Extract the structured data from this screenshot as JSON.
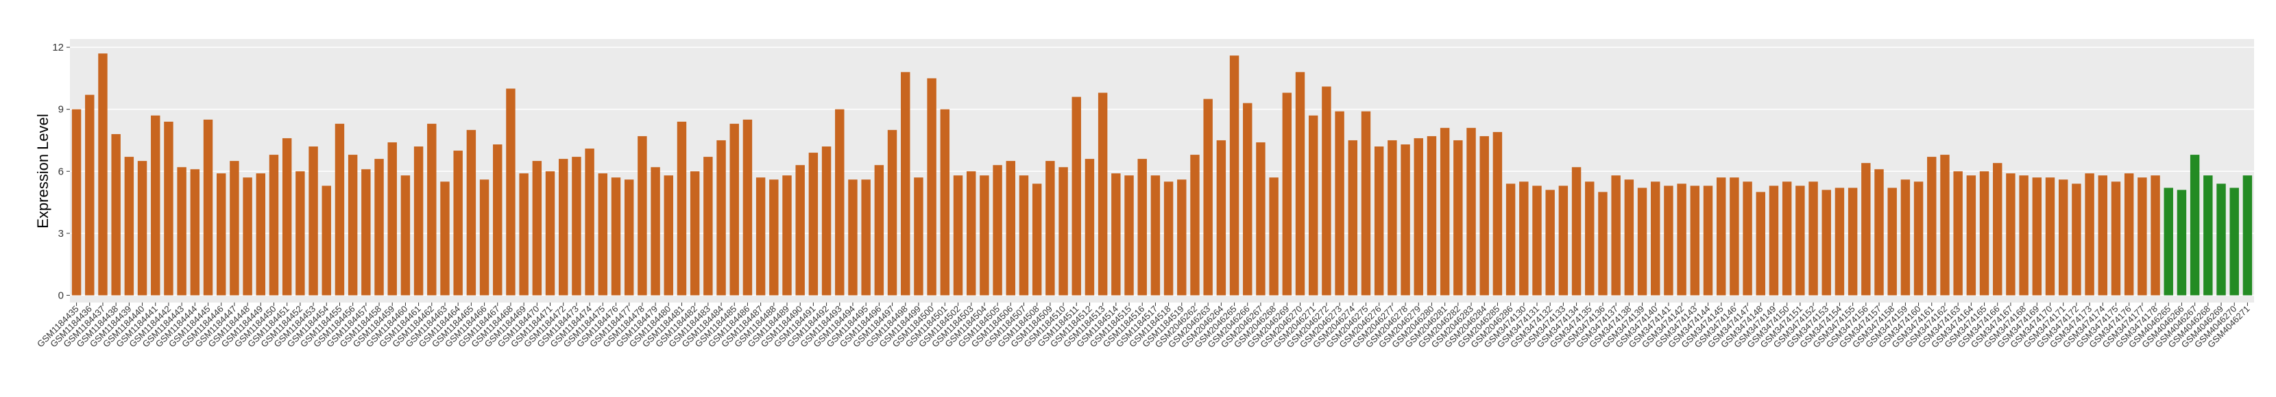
{
  "chart_data": {
    "type": "bar",
    "y_label": "Expression Level",
    "ylim": [
      -0.35,
      12.4
    ],
    "yticks": [
      0,
      3,
      6,
      9,
      12
    ],
    "grid": true,
    "series": [
      {
        "color": "#c8651f",
        "categories": [
          "GSM1184435",
          "GSM1184436",
          "GSM1184437",
          "GSM1184438",
          "GSM1184439",
          "GSM1184440",
          "GSM1184441",
          "GSM1184442",
          "GSM1184443",
          "GSM1184444",
          "GSM1184445",
          "GSM1184446",
          "GSM1184447",
          "GSM1184448",
          "GSM1184449",
          "GSM1184450",
          "GSM1184451",
          "GSM1184452",
          "GSM1184453",
          "GSM1184454",
          "GSM1184455",
          "GSM1184456",
          "GSM1184457",
          "GSM1184458",
          "GSM1184459",
          "GSM1184460",
          "GSM1184461",
          "GSM1184462",
          "GSM1184463",
          "GSM1184464",
          "GSM1184465",
          "GSM1184466",
          "GSM1184467",
          "GSM1184468",
          "GSM1184469",
          "GSM1184470",
          "GSM1184471",
          "GSM1184472",
          "GSM1184473",
          "GSM1184474",
          "GSM1184475",
          "GSM1184476",
          "GSM1184477",
          "GSM1184478",
          "GSM1184479",
          "GSM1184480",
          "GSM1184481",
          "GSM1184482",
          "GSM1184483",
          "GSM1184484",
          "GSM1184485",
          "GSM1184486",
          "GSM1184487",
          "GSM1184488",
          "GSM1184489",
          "GSM1184490",
          "GSM1184491",
          "GSM1184492",
          "GSM1184493",
          "GSM1184494",
          "GSM1184495",
          "GSM1184496",
          "GSM1184497",
          "GSM1184498",
          "GSM1184499",
          "GSM1184500",
          "GSM1184501",
          "GSM1184502",
          "GSM1184503",
          "GSM1184504",
          "GSM1184505",
          "GSM1184506",
          "GSM1184507",
          "GSM1184508",
          "GSM1184509",
          "GSM1184510",
          "GSM1184511",
          "GSM1184512",
          "GSM1184513",
          "GSM1184514",
          "GSM1184515",
          "GSM1184516",
          "GSM1184517",
          "GSM1184518",
          "GSM1184519",
          "GSM2046262",
          "GSM2046263",
          "GSM2046264",
          "GSM2046265",
          "GSM2046266",
          "GSM2046267",
          "GSM2046268",
          "GSM2046269",
          "GSM2046270",
          "GSM2046271",
          "GSM2046272",
          "GSM2046273",
          "GSM2046274",
          "GSM2046275",
          "GSM2046276",
          "GSM2046277",
          "GSM2046278",
          "GSM2046279",
          "GSM2046280",
          "GSM2046281",
          "GSM2046282",
          "GSM2046283",
          "GSM2046284",
          "GSM2046285",
          "GSM2046286",
          "GSM3474130",
          "GSM3474131",
          "GSM3474132",
          "GSM3474133",
          "GSM3474134",
          "GSM3474135",
          "GSM3474136",
          "GSM3474137",
          "GSM3474138",
          "GSM3474139",
          "GSM3474140",
          "GSM3474141",
          "GSM3474142",
          "GSM3474143",
          "GSM3474144",
          "GSM3474145",
          "GSM3474146",
          "GSM3474147",
          "GSM3474148",
          "GSM3474149",
          "GSM3474150",
          "GSM3474151",
          "GSM3474152",
          "GSM3474153",
          "GSM3474154",
          "GSM3474155",
          "GSM3474156",
          "GSM3474157",
          "GSM3474158",
          "GSM3474159",
          "GSM3474160",
          "GSM3474161",
          "GSM3474162",
          "GSM3474163",
          "GSM3474164",
          "GSM3474165",
          "GSM3474166",
          "GSM3474167",
          "GSM3474168",
          "GSM3474169",
          "GSM3474170",
          "GSM3474171",
          "GSM3474172",
          "GSM3474173",
          "GSM3474174",
          "GSM3474175",
          "GSM3474176",
          "GSM3474177",
          "GSM3474178"
        ],
        "values": [
          9.0,
          9.7,
          11.7,
          7.8,
          6.7,
          6.5,
          8.7,
          8.4,
          6.2,
          6.1,
          8.5,
          5.9,
          6.5,
          5.7,
          5.9,
          6.8,
          7.6,
          6.0,
          7.2,
          5.3,
          8.3,
          6.8,
          6.1,
          6.6,
          7.4,
          5.8,
          7.2,
          8.3,
          5.5,
          7.0,
          8.0,
          5.6,
          7.3,
          10.0,
          5.9,
          6.5,
          6.0,
          6.6,
          6.7,
          7.1,
          5.9,
          5.7,
          5.6,
          7.7,
          6.2,
          5.8,
          8.4,
          6.0,
          6.7,
          7.5,
          8.3,
          8.5,
          5.7,
          5.6,
          5.8,
          6.3,
          6.9,
          7.2,
          9.0,
          5.6,
          5.6,
          6.3,
          8.0,
          10.8,
          5.7,
          10.5,
          9.0,
          5.8,
          6.0,
          5.8,
          6.3,
          6.5,
          5.8,
          5.4,
          6.5,
          6.2,
          9.6,
          6.6,
          9.8,
          5.9,
          5.8,
          6.6,
          5.8,
          5.5,
          5.6,
          6.8,
          9.5,
          7.5,
          11.6,
          9.3,
          7.4,
          5.7,
          9.8,
          10.8,
          8.7,
          10.1,
          8.9,
          7.5,
          8.9,
          7.2,
          7.5,
          7.3,
          7.6,
          7.7,
          8.1,
          7.5,
          8.1,
          7.7,
          7.9,
          5.4,
          5.5,
          5.3,
          5.1,
          5.3,
          6.2,
          5.5,
          5.0,
          5.8,
          5.6,
          5.2,
          5.5,
          5.3,
          5.4,
          5.3,
          5.3,
          5.7,
          5.7,
          5.5,
          5.0,
          5.3,
          5.5,
          5.3,
          5.5,
          5.1,
          5.2,
          5.2,
          6.4,
          6.1,
          5.2,
          5.6,
          5.5,
          6.7,
          6.8,
          6.0,
          5.8,
          6.0,
          6.4,
          5.9,
          5.8,
          5.7,
          5.7,
          5.6,
          5.4,
          5.9,
          5.8,
          5.5,
          5.9,
          5.7,
          5.8
        ]
      },
      {
        "color": "#238b23",
        "categories": [
          "GSM4046265",
          "GSM4046266",
          "GSM4046267",
          "GSM4046268",
          "GSM4046269",
          "GSM4046270",
          "GSM4046271"
        ],
        "values": [
          5.2,
          5.1,
          6.8,
          5.8,
          5.4,
          5.2,
          5.8
        ]
      }
    ]
  }
}
